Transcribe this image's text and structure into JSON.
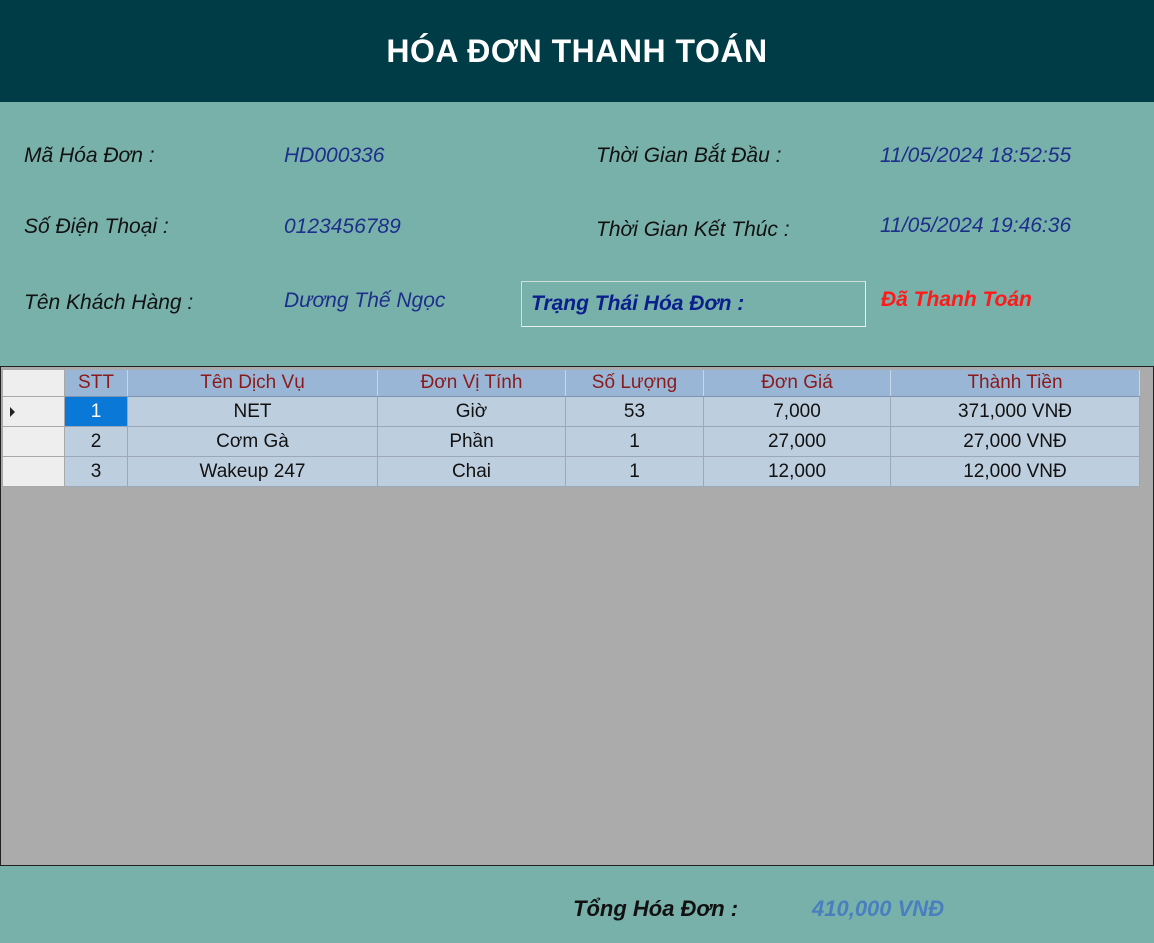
{
  "header": {
    "title": "HÓA ĐƠN THANH TOÁN"
  },
  "info": {
    "invoice_id_label": "Mã Hóa Đơn :",
    "invoice_id": "HD000336",
    "phone_label": "Số Điện Thoại :",
    "phone": "0123456789",
    "customer_label": "Tên Khách Hàng :",
    "customer": "Dương Thế Ngọc",
    "start_label": "Thời Gian Bắt Đầu :",
    "start_time": "11/05/2024 18:52:55",
    "end_label": "Thời Gian Kết Thúc :",
    "end_time": "11/05/2024 19:46:36",
    "status_label": "Trạng Thái Hóa Đơn :",
    "status": "Đã Thanh Toán"
  },
  "grid": {
    "columns": [
      "STT",
      "Tên Dịch Vụ",
      "Đơn Vị Tính",
      "Số Lượng",
      "Đơn Giá",
      "Thành Tiền"
    ],
    "rows": [
      {
        "stt": "1",
        "service": "NET",
        "unit": "Giờ",
        "qty": "53",
        "price": "7,000",
        "amount": "371,000 VNĐ"
      },
      {
        "stt": "2",
        "service": "Cơm Gà",
        "unit": "Phần",
        "qty": "1",
        "price": "27,000",
        "amount": "27,000 VNĐ"
      },
      {
        "stt": "3",
        "service": "Wakeup 247",
        "unit": "Chai",
        "qty": "1",
        "price": "12,000",
        "amount": "12,000 VNĐ"
      }
    ],
    "selected_row": 1
  },
  "footer": {
    "total_label": "Tổng Hóa Đơn :",
    "total_value": "410,000 VNĐ"
  },
  "colors": {
    "header_bg": "#003c46",
    "panel_bg": "#78b1aa",
    "value_text": "#1d2f8a",
    "status_paid": "#ff1a1a",
    "total_value": "#4a7fbf",
    "grid_header_text": "#8b1a1a",
    "selection": "#0a78d7"
  }
}
